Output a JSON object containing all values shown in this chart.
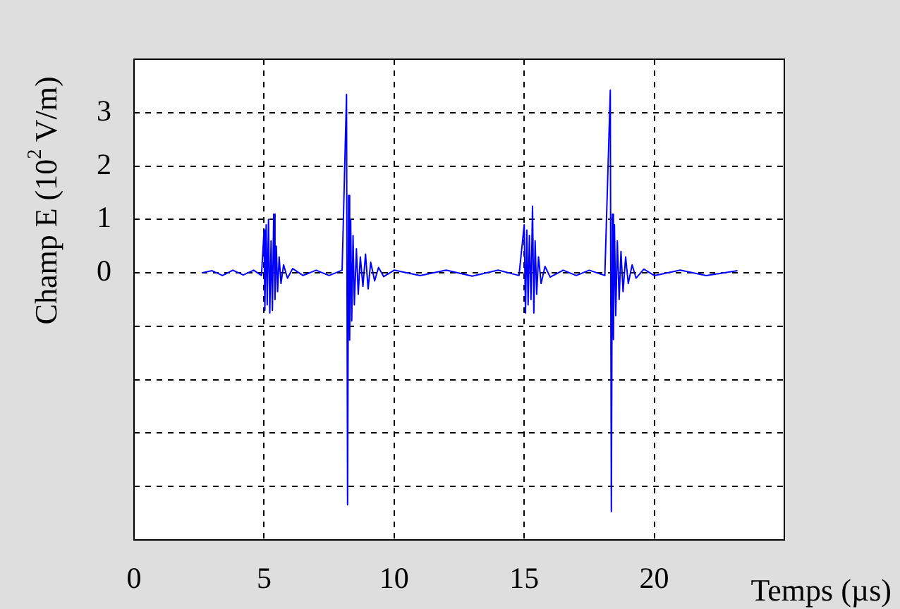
{
  "chart_data": {
    "type": "line",
    "xlabel": "Temps (µs)",
    "ylabel": "Champ E (10$^{2}$ V/m)",
    "xlim": [
      0,
      25
    ],
    "xticks": [
      0,
      5,
      10,
      15,
      20,
      {
        "value": 25,
        "label": null
      }
    ],
    "ylim": [
      -5,
      4
    ],
    "yticks": [
      {
        "value": -5,
        "label": null
      },
      {
        "value": -4,
        "label": null
      },
      {
        "value": -3,
        "label": null
      },
      {
        "value": -2,
        "label": null
      },
      {
        "value": -1,
        "label": null
      },
      0,
      1,
      2,
      3,
      {
        "value": 4,
        "label": null
      }
    ],
    "grid": true,
    "marker": "none",
    "series": [
      {
        "color": "#0000ff",
        "x": [
          2.6,
          3.0,
          3.4,
          3.8,
          4.2,
          4.6,
          4.9,
          5.0,
          5.03,
          5.08,
          5.12,
          5.17,
          5.22,
          5.27,
          5.32,
          5.37,
          5.42,
          5.47,
          5.52,
          5.58,
          5.65,
          5.75,
          5.9,
          6.1,
          6.5,
          7.0,
          7.5,
          8.0,
          8.17,
          8.21,
          8.25,
          8.29,
          8.33,
          8.37,
          8.42,
          8.47,
          8.55,
          8.62,
          8.7,
          8.8,
          8.9,
          9.0,
          9.1,
          9.25,
          9.4,
          9.6,
          10.0,
          11,
          12,
          13,
          14,
          14.8,
          15.0,
          15.05,
          15.1,
          15.15,
          15.2,
          15.26,
          15.32,
          15.37,
          15.42,
          15.48,
          15.55,
          15.65,
          15.8,
          16.0,
          16.5,
          17,
          17.5,
          18.1,
          18.31,
          18.35,
          18.39,
          18.43,
          18.47,
          18.52,
          18.58,
          18.65,
          18.72,
          18.8,
          18.9,
          19.0,
          19.15,
          19.3,
          19.6,
          20,
          21,
          22,
          23.2
        ],
        "values": [
          0,
          0.04,
          -0.05,
          0.05,
          -0.04,
          0.05,
          -0.05,
          0.8,
          -0.7,
          0.9,
          -0.6,
          1.0,
          -0.75,
          0.6,
          -0.7,
          1.1,
          -0.5,
          0.5,
          -0.35,
          0.3,
          -0.2,
          0.15,
          -0.1,
          0.08,
          -0.05,
          0.05,
          -0.05,
          0.05,
          3.34,
          -4.34,
          1.45,
          -1.26,
          1.0,
          -0.9,
          0.7,
          -0.6,
          0.45,
          -0.4,
          0.3,
          -0.25,
          0.35,
          -0.3,
          0.2,
          -0.15,
          0.1,
          -0.07,
          0.05,
          -0.05,
          0.05,
          -0.06,
          0.05,
          -0.05,
          0.9,
          -0.75,
          0.8,
          -0.6,
          0.7,
          -0.5,
          1.25,
          -0.75,
          0.6,
          -0.4,
          0.3,
          -0.2,
          0.12,
          -0.08,
          0.05,
          -0.05,
          0.05,
          -0.05,
          3.42,
          -4.47,
          1.1,
          -1.25,
          0.9,
          -0.8,
          0.6,
          -0.5,
          0.4,
          -0.35,
          0.3,
          -0.2,
          0.15,
          -0.1,
          0.07,
          -0.05,
          0.05,
          -0.05,
          0.04
        ]
      }
    ]
  }
}
